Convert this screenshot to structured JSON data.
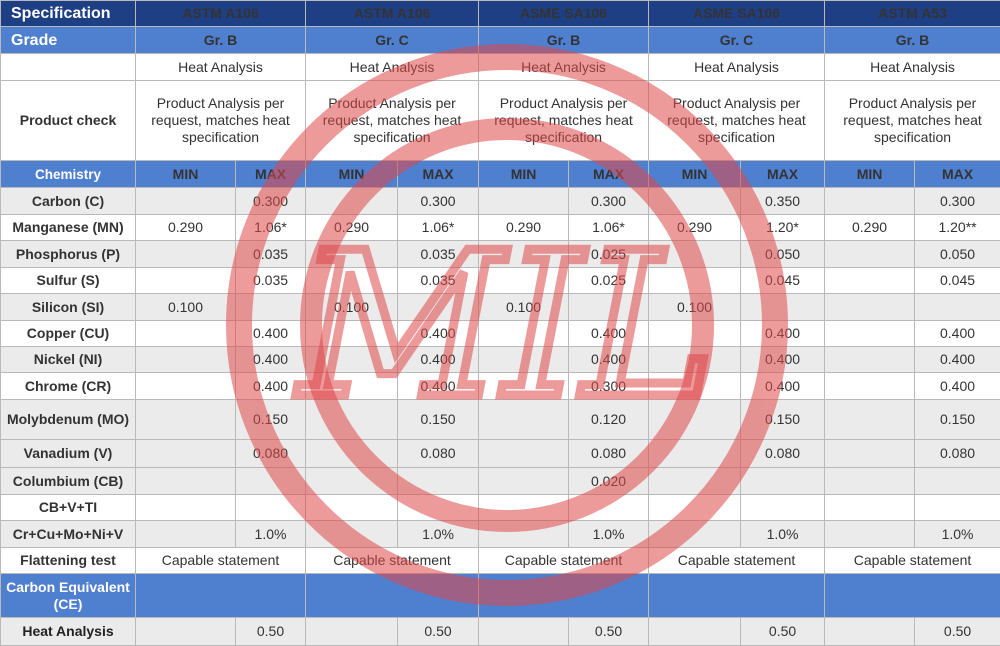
{
  "header": {
    "spec_label": "Specification",
    "grade_label": "Grade",
    "specs": [
      "ASTM  A106",
      "ASTM  A106",
      "ASME  SA106",
      "ASME  SA106",
      "ASTM  A53"
    ],
    "grades": [
      "Gr. B",
      "Gr. C",
      "Gr. B",
      "Gr. C",
      "Gr. B"
    ]
  },
  "heat_analysis": [
    "Heat Analysis",
    "Heat Analysis",
    "Heat Analysis",
    "Heat Analysis",
    "Heat Analysis"
  ],
  "product_check": {
    "label": "Product check",
    "values": [
      "Product Analysis per request, matches heat specification",
      "Product Analysis per request, matches heat specification",
      "Product Analysis per request, matches heat specification",
      "Product Analysis per request, matches heat specification",
      "Product Analysis per request, matches heat specification"
    ]
  },
  "chemistry_header": {
    "label": "Chemistry",
    "min": "MIN",
    "max": "MAX"
  },
  "rows": [
    {
      "label": "Carbon (C)",
      "cells": [
        "",
        "0.300",
        "",
        "0.300",
        "",
        "0.300",
        "",
        "0.350",
        "",
        "0.300"
      ]
    },
    {
      "label": "Manganese (MN)",
      "cells": [
        "0.290",
        "1.06*",
        "0.290",
        "1.06*",
        "0.290",
        "1.06*",
        "0.290",
        "1.20*",
        "0.290",
        "1.20**"
      ]
    },
    {
      "label": "Phosphorus (P)",
      "cells": [
        "",
        "0.035",
        "",
        "0.035",
        "",
        "0.025",
        "",
        "0.050",
        "",
        "0.050"
      ]
    },
    {
      "label": "Sulfur (S)",
      "cells": [
        "",
        "0.035",
        "",
        "0.035",
        "",
        "0.025",
        "",
        "0.045",
        "",
        "0.045"
      ]
    },
    {
      "label": "Silicon (SI)",
      "cells": [
        "0.100",
        "",
        "0.100",
        "",
        "0.100",
        "",
        "0.100",
        "",
        "",
        ""
      ]
    },
    {
      "label": "Copper (CU)",
      "cells": [
        "",
        "0.400",
        "",
        "0.400",
        "",
        "0.400",
        "",
        "0.400",
        "",
        "0.400"
      ]
    },
    {
      "label": "Nickel (NI)",
      "cells": [
        "",
        "0.400",
        "",
        "0.400",
        "",
        "0.400",
        "",
        "0.400",
        "",
        "0.400"
      ]
    },
    {
      "label": "Chrome (CR)",
      "cells": [
        "",
        "0.400",
        "",
        "0.400",
        "",
        "0.300",
        "",
        "0.400",
        "",
        "0.400"
      ]
    },
    {
      "label": "Molybdenum (MO)",
      "cells": [
        "",
        "0.150",
        "",
        "0.150",
        "",
        "0.120",
        "",
        "0.150",
        "",
        "0.150"
      ]
    },
    {
      "label": "Vanadium (V)",
      "cells": [
        "",
        "0.080",
        "",
        "0.080",
        "",
        "0.080",
        "",
        "0.080",
        "",
        "0.080"
      ]
    },
    {
      "label": "Columbium (CB)",
      "cells": [
        "",
        "",
        "",
        "",
        "",
        "0.020",
        "",
        "",
        "",
        ""
      ]
    },
    {
      "label": "CB+V+TI",
      "cells": [
        "",
        "",
        "",
        "",
        "",
        "",
        "",
        "",
        "",
        ""
      ]
    },
    {
      "label": "Cr+Cu+Mo+Ni+V",
      "cells": [
        "",
        "1.0%",
        "",
        "1.0%",
        "",
        "1.0%",
        "",
        "1.0%",
        "",
        "1.0%"
      ]
    }
  ],
  "flattening": {
    "label": "Flattening test",
    "values": [
      "Capable statement",
      "Capable statement",
      "Capable statement",
      "Capable statement",
      "Capable statement"
    ]
  },
  "carbon_equivalent": {
    "label": "Carbon Equivalent (CE)"
  },
  "heat_analysis_row": {
    "label": "Heat Analysis",
    "cells": [
      "",
      "0.50",
      "",
      "0.50",
      "",
      "0.50",
      "",
      "0.50",
      "",
      "0.50"
    ]
  },
  "watermark": {
    "text": "MIL",
    "color": "#e0484a"
  }
}
